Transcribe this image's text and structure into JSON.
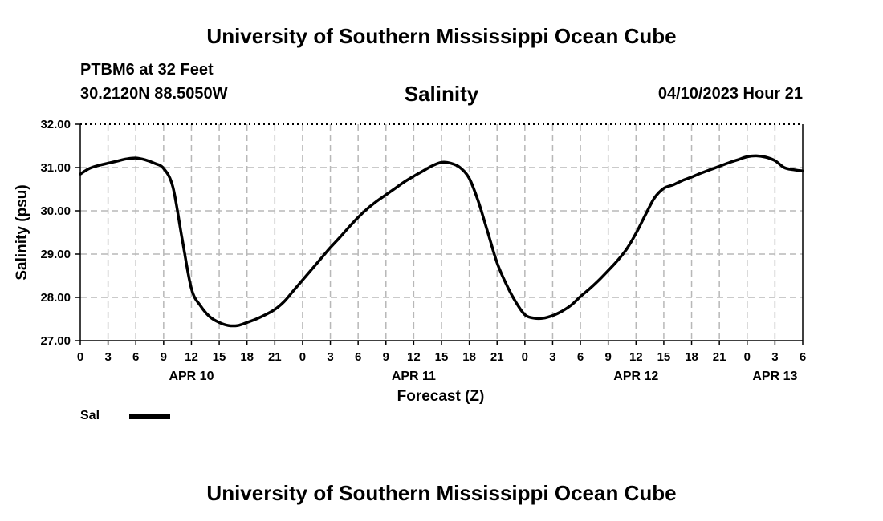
{
  "header": {
    "title": "University of Southern Mississippi Ocean Cube",
    "station": "PTBM6 at 32 Feet",
    "coords": "30.2120N  88.5050W",
    "datetime": "04/10/2023 Hour 21"
  },
  "footer": {
    "title": "University of Southern Mississippi Ocean Cube"
  },
  "legend": {
    "label": "Sal",
    "color": "#000000"
  },
  "chart_data": {
    "type": "line",
    "title": "Salinity",
    "xlabel": "Forecast (Z)",
    "ylabel": "Salinity (psu)",
    "ylim": [
      27.0,
      32.0
    ],
    "xlim": [
      0,
      78
    ],
    "y_ticks": [
      "27.00",
      "28.00",
      "29.00",
      "30.00",
      "31.00",
      "32.00"
    ],
    "x_ticks": [
      "0",
      "3",
      "6",
      "9",
      "12",
      "15",
      "18",
      "21",
      "0",
      "3",
      "6",
      "9",
      "12",
      "15",
      "18",
      "21",
      "0",
      "3",
      "6",
      "9",
      "12",
      "15",
      "18",
      "21",
      "0",
      "3",
      "6"
    ],
    "date_labels": [
      {
        "label": "APR 10",
        "hour": 12
      },
      {
        "label": "APR 11",
        "hour": 36
      },
      {
        "label": "APR 12",
        "hour": 60
      },
      {
        "label": "APR 13",
        "hour": 75
      }
    ],
    "grid": true,
    "series": [
      {
        "name": "Sal",
        "x": [
          0,
          1,
          2,
          3,
          4,
          5,
          6,
          7,
          8,
          9,
          10,
          11,
          12,
          13,
          14,
          15,
          16,
          17,
          18,
          19,
          20,
          21,
          22,
          23,
          24,
          25,
          26,
          27,
          28,
          29,
          30,
          31,
          32,
          33,
          34,
          35,
          36,
          37,
          38,
          39,
          40,
          41,
          42,
          43,
          44,
          45,
          46,
          47,
          48,
          49,
          50,
          51,
          52,
          53,
          54,
          55,
          56,
          57,
          58,
          59,
          60,
          61,
          62,
          63,
          64,
          65,
          66,
          67,
          68,
          69,
          70,
          71,
          72,
          73,
          74,
          75,
          76,
          77,
          78
        ],
        "values": [
          30.85,
          30.98,
          31.05,
          31.1,
          31.15,
          31.2,
          31.22,
          31.18,
          31.1,
          30.98,
          30.55,
          29.35,
          28.2,
          27.8,
          27.55,
          27.42,
          27.35,
          27.35,
          27.42,
          27.5,
          27.6,
          27.72,
          27.9,
          28.15,
          28.4,
          28.65,
          28.9,
          29.15,
          29.38,
          29.62,
          29.85,
          30.05,
          30.22,
          30.37,
          30.52,
          30.67,
          30.8,
          30.92,
          31.04,
          31.12,
          31.1,
          31.0,
          30.75,
          30.2,
          29.5,
          28.8,
          28.3,
          27.9,
          27.6,
          27.52,
          27.52,
          27.58,
          27.68,
          27.82,
          28.02,
          28.2,
          28.4,
          28.62,
          28.85,
          29.12,
          29.48,
          29.9,
          30.3,
          30.52,
          30.6,
          30.7,
          30.78,
          30.87,
          30.95,
          31.03,
          31.11,
          31.18,
          31.25,
          31.27,
          31.24,
          31.16,
          31.0,
          30.95,
          30.92
        ]
      }
    ]
  }
}
